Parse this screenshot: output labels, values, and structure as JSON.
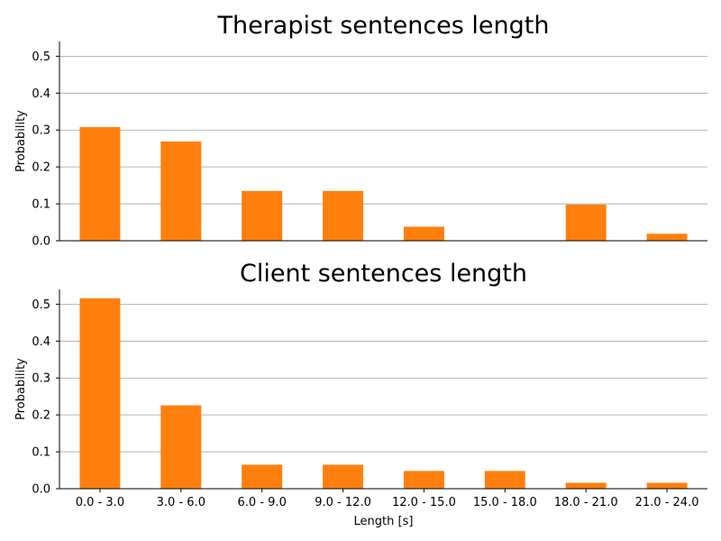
{
  "chart_data": [
    {
      "type": "bar",
      "title": "Therapist sentences length",
      "ylabel": "Probability",
      "xlabel": "",
      "ylim": [
        0,
        0.54
      ],
      "yticks": [
        "0.0",
        "0.1",
        "0.2",
        "0.3",
        "0.4",
        "0.5"
      ],
      "categories": [
        "0.0 - 3.0",
        "3.0 - 6.0",
        "6.0 - 9.0",
        "9.0 - 12.0",
        "12.0 - 15.0",
        "15.0 - 18.0",
        "18.0 - 21.0",
        "21.0 - 24.0"
      ],
      "show_category_labels": false,
      "values": [
        0.308,
        0.269,
        0.135,
        0.135,
        0.038,
        0.0,
        0.098,
        0.019
      ],
      "color": "#ff7f0e",
      "grid": "y"
    },
    {
      "type": "bar",
      "title": "Client sentences length",
      "ylabel": "Probability",
      "xlabel": "Length [s]",
      "ylim": [
        0,
        0.54
      ],
      "yticks": [
        "0.0",
        "0.1",
        "0.2",
        "0.3",
        "0.4",
        "0.5"
      ],
      "categories": [
        "0.0 - 3.0",
        "3.0 - 6.0",
        "6.0 - 9.0",
        "9.0 - 12.0",
        "12.0 - 15.0",
        "15.0 - 18.0",
        "18.0 - 21.0",
        "21.0 - 24.0"
      ],
      "show_category_labels": true,
      "values": [
        0.516,
        0.226,
        0.065,
        0.065,
        0.048,
        0.048,
        0.016,
        0.016
      ],
      "color": "#ff7f0e",
      "grid": "y"
    }
  ]
}
